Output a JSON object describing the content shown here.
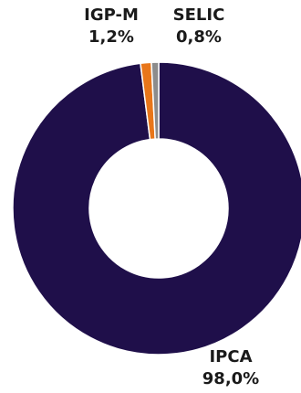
{
  "chart_data": {
    "type": "pie",
    "variant": "donut",
    "categories": [
      "IPCA",
      "IGP-M",
      "SELIC"
    ],
    "values": [
      98.0,
      1.2,
      0.8
    ],
    "value_labels": [
      "98,0%",
      "1,2%",
      "0,8%"
    ],
    "colors": [
      "#1f0f4a",
      "#e8761a",
      "#8c8c8c"
    ],
    "start_angle_deg": 0,
    "direction": "clockwise",
    "legend": "none"
  }
}
